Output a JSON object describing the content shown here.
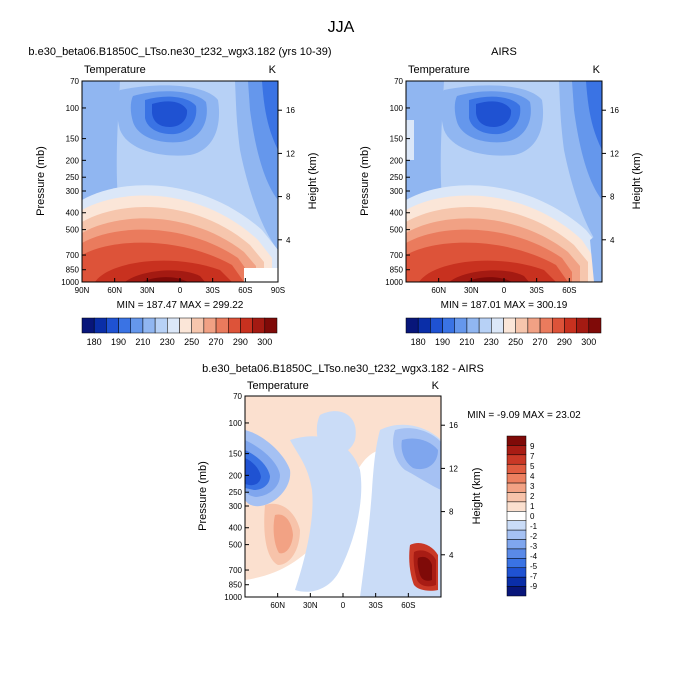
{
  "page": {
    "title": "JJA"
  },
  "colorbar_top": {
    "colors": [
      "#08167a",
      "#0a2ea8",
      "#1f52d2",
      "#3a73e4",
      "#6597ec",
      "#90b6f1",
      "#b7d1f6",
      "#dbe7f8",
      "#fbe6d8",
      "#f6c6ad",
      "#f1a184",
      "#ea7b5d",
      "#dd5339",
      "#c8311f",
      "#a41a12",
      "#7f0a08"
    ],
    "labels": [
      "180",
      "190",
      "210",
      "230",
      "250",
      "270",
      "290",
      "300"
    ]
  },
  "colorbar_diff": {
    "colors": [
      "#08167a",
      "#0a2ea8",
      "#1f52d2",
      "#3a73e4",
      "#5a8ae8",
      "#7fa6ee",
      "#a5c1f3",
      "#cadcf7",
      "#ffffff",
      "#fbe0cf",
      "#f7c3aa",
      "#f2a284",
      "#ec8060",
      "#e05c40",
      "#c93826",
      "#a81c14",
      "#7f0a08"
    ],
    "labels": [
      "9",
      "7",
      "5",
      "4",
      "3",
      "2",
      "1",
      "0",
      "-1",
      "-2",
      "-3",
      "-4",
      "-5",
      "-7",
      "-9"
    ]
  },
  "chart_data": [
    {
      "type": "heatmap",
      "title": "b.e30_beta06.B1850C_LTso.ne30_t232_wgx3.182 (yrs 10-39)",
      "left_label": "Temperature",
      "right_label": "K",
      "ylabel": "Pressure (mb)",
      "ylabel_right": "Height (km)",
      "x_ticks": [
        "90N",
        "60N",
        "30N",
        "0",
        "30S",
        "60S",
        "90S"
      ],
      "y_ticks": [
        "70",
        "100",
        "150",
        "200",
        "250",
        "300",
        "400",
        "500",
        "700",
        "850",
        "1000"
      ],
      "height_ticks": [
        "16",
        "12",
        "8",
        "4"
      ],
      "xlim": [
        90,
        -90
      ],
      "ylim": [
        1000,
        70
      ],
      "stats": "MIN = 187.47   MAX = 299.22"
    },
    {
      "type": "heatmap",
      "title": "AIRS",
      "left_label": "Temperature",
      "right_label": "K",
      "ylabel": "Pressure (mb)",
      "ylabel_right": "Height (km)",
      "x_ticks": [
        "60N",
        "30N",
        "0",
        "30S",
        "60S"
      ],
      "y_ticks": [
        "70",
        "100",
        "150",
        "200",
        "250",
        "300",
        "400",
        "500",
        "700",
        "850",
        "1000"
      ],
      "height_ticks": [
        "16",
        "12",
        "8",
        "4"
      ],
      "xlim": [
        90,
        -90
      ],
      "ylim": [
        1000,
        70
      ],
      "stats": "MIN = 187.01   MAX = 300.19"
    },
    {
      "type": "heatmap",
      "title": "b.e30_beta06.B1850C_LTso.ne30_t232_wgx3.182 - AIRS",
      "left_label": "Temperature",
      "right_label": "K",
      "ylabel": "Pressure (mb)",
      "ylabel_right": "Height (km)",
      "x_ticks": [
        "60N",
        "30N",
        "0",
        "30S",
        "60S"
      ],
      "y_ticks": [
        "70",
        "100",
        "150",
        "200",
        "250",
        "300",
        "400",
        "500",
        "700",
        "850",
        "1000"
      ],
      "height_ticks": [
        "16",
        "12",
        "8",
        "4"
      ],
      "xlim": [
        90,
        -90
      ],
      "ylim": [
        1000,
        70
      ],
      "stats": "MIN = -9.09   MAX = 23.02"
    }
  ]
}
